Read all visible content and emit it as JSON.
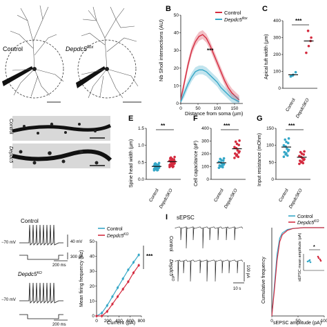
{
  "colors": {
    "control": "#35a7c7",
    "ko": "#d42b3f",
    "neuron": "#5a5a5a",
    "dendrite": "#222222",
    "bg": "#ffffff"
  },
  "panelA": {
    "control_label": "Control",
    "ko_label_main": "Depdc5",
    "ko_label_sup": "flox"
  },
  "panelB": {
    "letter": "B",
    "ylabel": "Nb Sholl intersections (AU)",
    "xlabel": "Distance from soma (µm)",
    "legend": [
      {
        "name": "Control"
      },
      {
        "name_main": "Depdc5",
        "name_sup": "flox"
      }
    ],
    "sig": "***",
    "xticks": [
      "0",
      "50",
      "100",
      "150"
    ],
    "yticks": [
      "0",
      "10",
      "20",
      "30",
      "40",
      "50"
    ]
  },
  "panelC": {
    "letter": "C",
    "ylabel": "Apical tuft width (µm)",
    "yticks": [
      "0",
      "100",
      "200",
      "300",
      "400"
    ],
    "sig": "***",
    "xcats": [
      "Control",
      "Depdc5KO"
    ]
  },
  "panelD": {
    "row1": "Control",
    "row2": "Depdc5"
  },
  "panelE": {
    "letter": "E",
    "ylabel": "Spine head width (µm)",
    "yticks": [
      "0.0",
      "0.5",
      "1.0",
      "1.5"
    ],
    "sig": "**",
    "xcats": [
      "Control",
      "Depdc5KO"
    ]
  },
  "panelF": {
    "letter": "F",
    "ylabel": "Cell capacitance (pF)",
    "yticks": [
      "0",
      "100",
      "200",
      "300",
      "400"
    ],
    "sig": "***",
    "xcats": [
      "Control",
      "Depdc5KO"
    ]
  },
  "panelG": {
    "letter": "G",
    "ylabel": "Input resistance (mOhm)",
    "yticks": [
      "0",
      "50",
      "100",
      "150"
    ],
    "sig": "***",
    "xcats": [
      "Control",
      "Depdc5KO"
    ]
  },
  "panelH": {
    "trace1_label": "Control",
    "trace2_label_main": "Depdc5",
    "trace2_label_sup": "KO",
    "vrest": "−70 mV",
    "vbar": "40 mV",
    "ibar": "300 pA",
    "tbar": "200 ms",
    "ylabel": "Mean firing frequency (Hz)",
    "xlabel": "Current (pA)",
    "legend": [
      {
        "name": "Control"
      },
      {
        "name_main": "Depdc5",
        "name_sup": "KO"
      }
    ],
    "xticks": [
      "0",
      "200",
      "400",
      "600",
      "800"
    ],
    "yticks": [
      "0",
      "10",
      "20",
      "30",
      "40",
      "50"
    ],
    "sig": "***"
  },
  "panelI": {
    "letter": "I",
    "title": "sEPSC",
    "trace1_label": "Control",
    "trace2_label_main": "Depdc5",
    "trace2_label_sup": "KO",
    "sbar_i": "100 pA",
    "sbar_t": "10 s",
    "ylabel": "Cumulative frequency",
    "xlabel": "sEPSC amplitude (pA)",
    "legend": [
      {
        "name": "Control"
      },
      {
        "name_main": "Depdc5",
        "name_sup": "KO"
      }
    ],
    "inset_ylabel": "sEPSC mean amplitude (pA)",
    "inset_sig": "*",
    "xticks": [
      "0",
      "50",
      "100"
    ]
  },
  "chart_data": [
    {
      "type": "line",
      "panel": "B",
      "x": [
        0,
        10,
        20,
        30,
        40,
        50,
        60,
        70,
        80,
        90,
        100,
        110,
        120,
        130,
        140,
        150,
        160
      ],
      "series": [
        {
          "name": "Control",
          "values": [
            2,
            12,
            22,
            30,
            35,
            38,
            39,
            37,
            33,
            28,
            23,
            18,
            13,
            9,
            6,
            4,
            2
          ]
        },
        {
          "name": "Depdc5flox",
          "values": [
            1,
            6,
            11,
            15,
            18,
            19,
            19,
            18,
            16,
            14,
            12,
            9,
            7,
            5,
            3,
            2,
            1
          ]
        }
      ],
      "xlim": [
        0,
        170
      ],
      "ylim": [
        0,
        50
      ]
    },
    {
      "type": "scatter",
      "panel": "C",
      "categories": [
        "Control",
        "Depdc5KO"
      ],
      "points": [
        [
          70,
          80,
          95,
          75
        ],
        [
          210,
          250,
          300,
          340,
          280
        ]
      ],
      "means": [
        80,
        280
      ],
      "ylim": [
        0,
        400
      ]
    },
    {
      "type": "scatter",
      "panel": "E",
      "categories": [
        "Control",
        "Depdc5KO"
      ],
      "means": [
        0.38,
        0.52
      ],
      "ylim": [
        0,
        1.5
      ]
    },
    {
      "type": "scatter",
      "panel": "F",
      "categories": [
        "Control",
        "Depdc5KO"
      ],
      "means": [
        130,
        240
      ],
      "ylim": [
        0,
        400
      ]
    },
    {
      "type": "scatter",
      "panel": "G",
      "categories": [
        "Control",
        "Depdc5KO"
      ],
      "means": [
        95,
        65
      ],
      "ylim": [
        0,
        150
      ]
    },
    {
      "type": "line",
      "panel": "H",
      "x": [
        0,
        100,
        200,
        300,
        400,
        500,
        600,
        700,
        800
      ],
      "series": [
        {
          "name": "Control",
          "values": [
            0,
            2,
            7,
            13,
            19,
            25,
            31,
            36,
            41
          ]
        },
        {
          "name": "Depdc5KO",
          "values": [
            0,
            0,
            3,
            8,
            13,
            18,
            23,
            29,
            34
          ]
        }
      ],
      "xlim": [
        0,
        850
      ],
      "ylim": [
        0,
        50
      ]
    },
    {
      "type": "line",
      "panel": "I",
      "x": [
        0,
        5,
        10,
        15,
        20,
        30,
        40,
        60,
        80,
        100
      ],
      "series": [
        {
          "name": "Control",
          "values": [
            0,
            0.35,
            0.7,
            0.88,
            0.94,
            0.98,
            0.99,
            1,
            1,
            1
          ]
        },
        {
          "name": "Depdc5KO",
          "values": [
            0,
            0.3,
            0.63,
            0.84,
            0.92,
            0.97,
            0.99,
            1,
            1,
            1
          ]
        }
      ],
      "xlim": [
        0,
        100
      ],
      "ylim": [
        0,
        1
      ]
    }
  ]
}
